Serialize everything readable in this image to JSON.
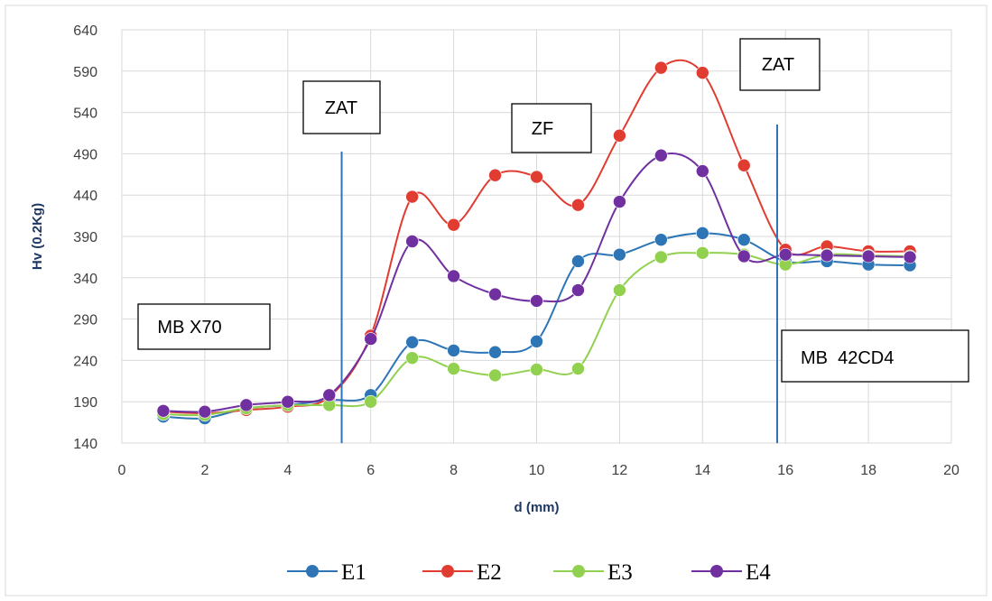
{
  "chart_data": {
    "type": "line",
    "title": "",
    "xlabel": "d (mm)",
    "ylabel": "Hv (0.2Kg)",
    "xlim": [
      0,
      20
    ],
    "ylim": [
      140,
      640
    ],
    "xticks": [
      "0",
      "2",
      "4",
      "6",
      "8",
      "10",
      "12",
      "14",
      "16",
      "18",
      "20"
    ],
    "yticks": [
      "140",
      "190",
      "240",
      "290",
      "340",
      "390",
      "440",
      "490",
      "540",
      "590",
      "640"
    ],
    "grid": true,
    "smooth": true,
    "legend_position": "bottom",
    "x": [
      1,
      2,
      3,
      4,
      5,
      6,
      7,
      8,
      9,
      10,
      11,
      12,
      13,
      14,
      15,
      16,
      17,
      18,
      19
    ],
    "series": [
      {
        "name": "E1",
        "color": "#2e75b6",
        "values": [
          172,
          170,
          182,
          186,
          192,
          198,
          262,
          252,
          250,
          263,
          360,
          368,
          386,
          394,
          386,
          360,
          360,
          356,
          355
        ]
      },
      {
        "name": "E2",
        "color": "#e03c31",
        "values": [
          178,
          176,
          180,
          184,
          196,
          270,
          438,
          404,
          464,
          462,
          428,
          512,
          594,
          588,
          476,
          374,
          378,
          372,
          372
        ]
      },
      {
        "name": "E3",
        "color": "#92d050",
        "values": [
          175,
          174,
          182,
          186,
          186,
          190,
          243,
          230,
          222,
          229,
          230,
          325,
          365,
          370,
          368,
          356,
          368,
          367,
          366
        ]
      },
      {
        "name": "E4",
        "color": "#7030a0",
        "values": [
          179,
          178,
          186,
          190,
          198,
          266,
          384,
          342,
          320,
          312,
          325,
          432,
          488,
          469,
          366,
          368,
          367,
          366,
          365
        ]
      }
    ],
    "annotations": [
      {
        "text": "ZAT",
        "region": "HAZ-left"
      },
      {
        "text": "ZF",
        "region": "fusion-zone"
      },
      {
        "text": "ZAT",
        "region": "HAZ-right"
      },
      {
        "text": "MB X70",
        "region": "base-metal-left"
      },
      {
        "text": "MB  42CD4",
        "region": "base-metal-right"
      }
    ],
    "boundary_lines_x": [
      5.3,
      15.8
    ]
  }
}
